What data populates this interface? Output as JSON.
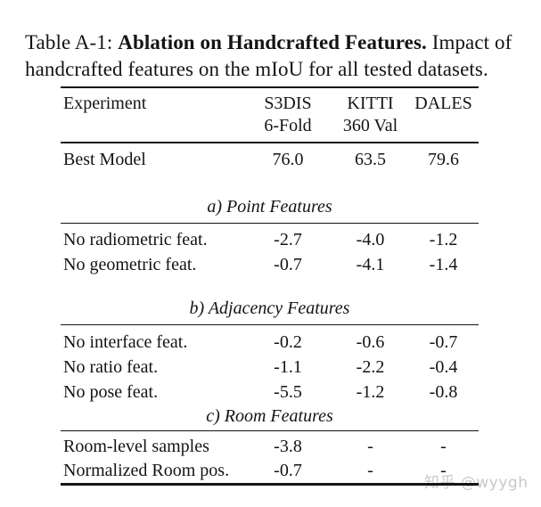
{
  "caption": {
    "prefix": "Table A-1: ",
    "bold": "Ablation on Handcrafted Features.",
    "rest_line1": " Impact of",
    "rest_line2": "handcrafted features on the mIoU for all tested datasets."
  },
  "table": {
    "header": {
      "experiment": "Experiment",
      "col1_line1": "S3DIS",
      "col1_line2": "6-Fold",
      "col2_line1": "KITTI",
      "col2_line2": "360 Val",
      "col3_line1": "DALES"
    },
    "best_model": {
      "label": "Best Model",
      "v1": "76.0",
      "v2": "63.5",
      "v3": "79.6"
    },
    "sections": [
      {
        "title": "a) Point Features",
        "rows": [
          {
            "label": "No radiometric feat.",
            "v1": "-2.7",
            "v2": "-4.0",
            "v3": "-1.2"
          },
          {
            "label": "No geometric feat.",
            "v1": "-0.7",
            "v2": "-4.1",
            "v3": "-1.4"
          }
        ]
      },
      {
        "title": "b) Adjacency Features",
        "rows": [
          {
            "label": "No interface feat.",
            "v1": "-0.2",
            "v2": "-0.6",
            "v3": "-0.7"
          },
          {
            "label": "No ratio feat.",
            "v1": "-1.1",
            "v2": "-2.2",
            "v3": "-0.4"
          },
          {
            "label": "No pose feat.",
            "v1": "-5.5",
            "v2": "-1.2",
            "v3": "-0.8"
          }
        ]
      },
      {
        "title": "c) Room Features",
        "rows": [
          {
            "label": "Room-level samples",
            "v1": "-3.8",
            "v2": "-",
            "v3": "-"
          },
          {
            "label": "Normalized Room pos.",
            "v1": "-0.7",
            "v2": "-",
            "v3": "-"
          }
        ]
      }
    ]
  },
  "watermark": {
    "text": "知乎 @wyygh",
    "color": "#c9c9c9"
  },
  "colors": {
    "text": "#141414",
    "rule": "#141414",
    "background": "#ffffff"
  }
}
